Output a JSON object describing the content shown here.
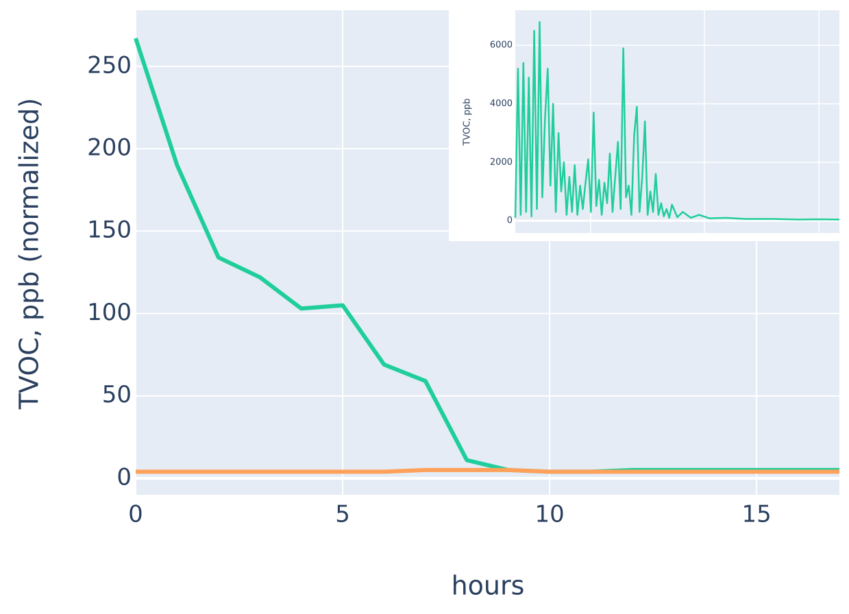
{
  "chart_data": [
    {
      "type": "line",
      "xlabel": "hours",
      "ylabel": "TVOC, ppb (normalized)",
      "x": [
        0,
        1,
        2,
        3,
        4,
        5,
        6,
        7,
        8,
        9,
        10,
        11,
        12,
        13,
        14,
        15,
        16,
        17
      ],
      "series": [
        {
          "color": "#1fce9a",
          "values": [
            267,
            190,
            134,
            122,
            103,
            105,
            69,
            59,
            11,
            5,
            4,
            4,
            5,
            5,
            5,
            5,
            5,
            5
          ]
        },
        {
          "color": "#ffa15a",
          "values": [
            4,
            4,
            4,
            4,
            4,
            4,
            4,
            5,
            5,
            5,
            4,
            4,
            4,
            4,
            4,
            4,
            4,
            4
          ]
        }
      ],
      "xlim": [
        0,
        17
      ],
      "xticks": [
        0,
        5,
        10,
        15
      ],
      "ylim": [
        -10,
        284
      ],
      "yticks": [
        0,
        50,
        100,
        150,
        200,
        250
      ],
      "grid": true
    },
    {
      "type": "line",
      "ylabel": "TVOC, ppb",
      "x": [
        0,
        1,
        2,
        3,
        4,
        5,
        6,
        7,
        8,
        9,
        10,
        11,
        12,
        13,
        14,
        15,
        16,
        17,
        18,
        19,
        20,
        21,
        22,
        23,
        24,
        25,
        26,
        27,
        28,
        29,
        30,
        31,
        32,
        33,
        34,
        35,
        36,
        37,
        38,
        39,
        40,
        41,
        42,
        43,
        44,
        45,
        46,
        47,
        48,
        49,
        50,
        51,
        52,
        53,
        54,
        55,
        56,
        57,
        58,
        60,
        62,
        65,
        68,
        72,
        78,
        85,
        95,
        105,
        112,
        120
      ],
      "series": [
        {
          "color": "#1fce9a",
          "values": [
            100,
            5200,
            200,
            5400,
            300,
            4900,
            150,
            6500,
            400,
            6800,
            800,
            3500,
            5200,
            1200,
            4000,
            300,
            3000,
            1000,
            2000,
            200,
            1500,
            300,
            1900,
            200,
            1200,
            400,
            1300,
            2100,
            300,
            3700,
            500,
            1400,
            200,
            1300,
            600,
            2300,
            300,
            1500,
            2700,
            400,
            5900,
            800,
            1200,
            200,
            2900,
            3900,
            300,
            1500,
            3400,
            200,
            1000,
            300,
            1600,
            200,
            600,
            150,
            400,
            100,
            550,
            120,
            300,
            100,
            200,
            80,
            100,
            60,
            60,
            40,
            50,
            40
          ]
        }
      ],
      "xlim": [
        0,
        120
      ],
      "ylim": [
        -420,
        7200
      ],
      "yticks": [
        0,
        2000,
        4000,
        6000
      ],
      "grid": true
    }
  ]
}
